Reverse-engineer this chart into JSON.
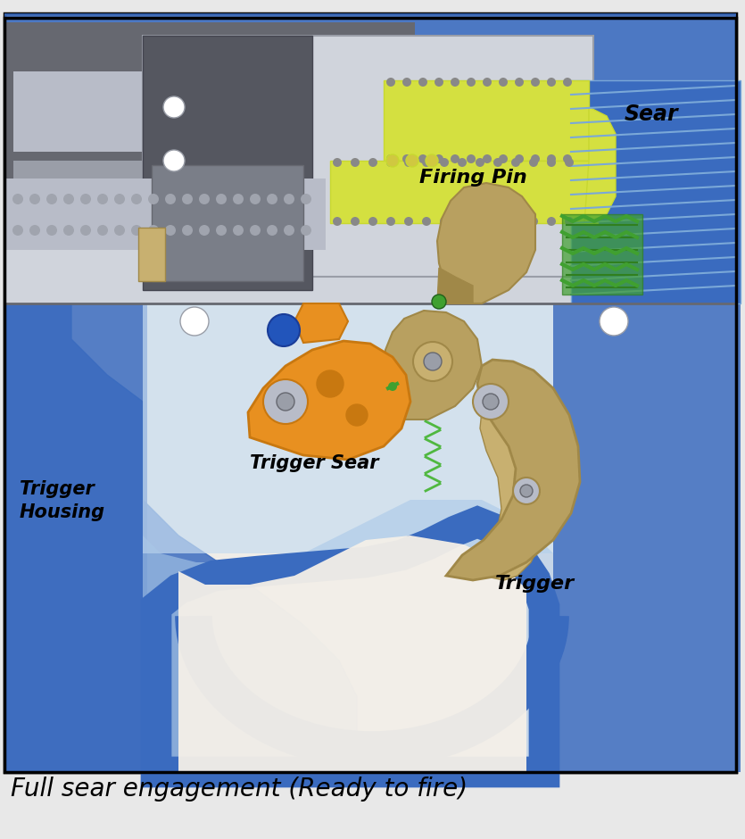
{
  "bg_color": "#e8e8e8",
  "diagram_bg": "#f0ede8",
  "border_color": "#000000",
  "title_text": "Full sear engagement (Ready to fire)",
  "labels": {
    "sear": "Sear",
    "firing_pin": "Firing Pin",
    "trigger_housing": "Trigger\nHousing",
    "trigger_sear": "Trigger Sear",
    "trigger": "Trigger"
  },
  "colors": {
    "blue_body": "#3a6bbf",
    "blue_light": "#7aa8d8",
    "blue_pale": "#aac8e8",
    "blue_very_pale": "#c8ddf0",
    "gray_dark": "#666870",
    "gray_medium": "#9a9ea8",
    "gray_light": "#b8bcc8",
    "gray_very_light": "#d0d4dc",
    "yellow_green": "#d4e040",
    "yellow_green2": "#c8d830",
    "gold": "#b8a060",
    "gold_dark": "#a08848",
    "gold_light": "#c8b070",
    "orange": "#e89020",
    "orange_dark": "#c87810",
    "green": "#40a030",
    "green_spring": "#50b840",
    "black": "#000000",
    "white": "#ffffff",
    "cream": "#f5f0e8"
  },
  "figure_width": 8.35,
  "figure_height": 9.4
}
